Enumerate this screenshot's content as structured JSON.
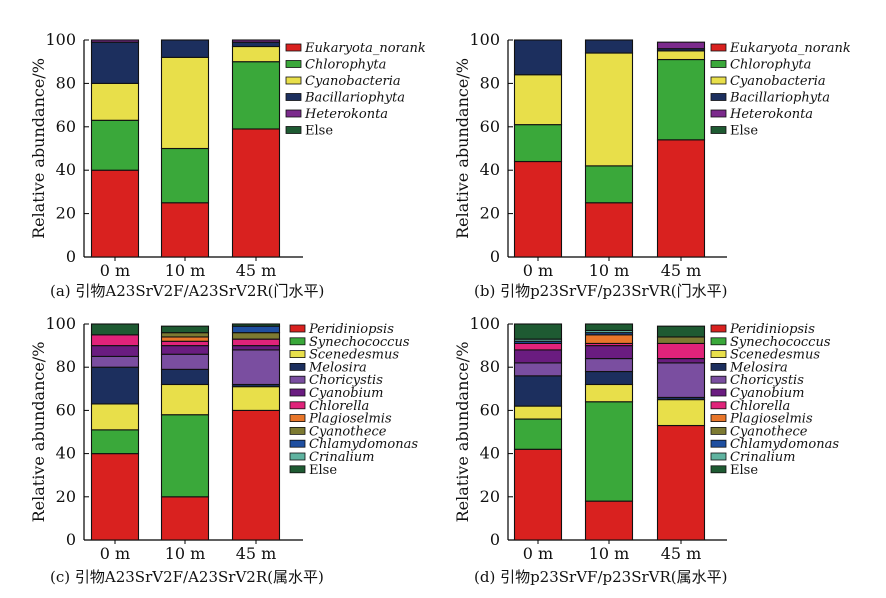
{
  "chart_data": [
    {
      "type": "bar",
      "stacked": true,
      "panel_caption": "(a) 引物A23SrV2F/A23SrV2R(门水平)",
      "ylabel": "Relative abundance/%",
      "ylim": [
        0,
        100
      ],
      "yticks": [
        "0",
        "20",
        "40",
        "60",
        "80",
        "100"
      ],
      "categories": [
        "0 m",
        "10 m",
        "45 m"
      ],
      "legend_position": "right",
      "series": [
        {
          "name": "Else",
          "italic": false,
          "color": "#1e5a32",
          "values": [
            0,
            0,
            0
          ]
        },
        {
          "name": "Heterokonta",
          "italic": true,
          "color": "#7b2a8c",
          "values": [
            1,
            0,
            1
          ]
        },
        {
          "name": "Bacillariophyta",
          "italic": true,
          "color": "#1c2f5e",
          "values": [
            19,
            8,
            2
          ]
        },
        {
          "name": "Cyanobacteria",
          "italic": true,
          "color": "#e8df4a",
          "values": [
            17,
            42,
            7
          ]
        },
        {
          "name": "Chlorophyta",
          "italic": true,
          "color": "#3aa83a",
          "values": [
            23,
            25,
            31
          ]
        },
        {
          "name": "Eukaryota_norank",
          "italic": true,
          "color": "#d9211f",
          "values": [
            40,
            25,
            59
          ]
        }
      ]
    },
    {
      "type": "bar",
      "stacked": true,
      "panel_caption": "(b) 引物p23SrVF/p23SrVR(门水平)",
      "ylabel": "Relative abundance/%",
      "ylim": [
        0,
        100
      ],
      "yticks": [
        "0",
        "20",
        "40",
        "60",
        "80",
        "100"
      ],
      "categories": [
        "0 m",
        "10 m",
        "45 m"
      ],
      "legend_position": "right",
      "series": [
        {
          "name": "Else",
          "italic": false,
          "color": "#1e5a32",
          "values": [
            0,
            0,
            0
          ]
        },
        {
          "name": "Heterokonta",
          "italic": true,
          "color": "#7b2a8c",
          "values": [
            0,
            0,
            3
          ]
        },
        {
          "name": "Bacillariophyta",
          "italic": true,
          "color": "#1c2f5e",
          "values": [
            16,
            6,
            1
          ]
        },
        {
          "name": "Cyanobacteria",
          "italic": true,
          "color": "#e8df4a",
          "values": [
            23,
            52,
            4
          ]
        },
        {
          "name": "Chlorophyta",
          "italic": true,
          "color": "#3aa83a",
          "values": [
            17,
            17,
            37
          ]
        },
        {
          "name": "Eukaryota_norank",
          "italic": true,
          "color": "#d9211f",
          "values": [
            44,
            25,
            54
          ]
        }
      ]
    },
    {
      "type": "bar",
      "stacked": true,
      "panel_caption": "(c) 引物A23SrV2F/A23SrV2R(属水平)",
      "ylabel": "Relative abundance/%",
      "ylim": [
        0,
        100
      ],
      "yticks": [
        "0",
        "20",
        "40",
        "60",
        "80",
        "100"
      ],
      "categories": [
        "0 m",
        "10 m",
        "45 m"
      ],
      "legend_position": "right",
      "series": [
        {
          "name": "Else",
          "italic": false,
          "color": "#1e5a32",
          "values": [
            5,
            3,
            1
          ]
        },
        {
          "name": "Crinalium",
          "italic": true,
          "color": "#5fb3a0",
          "values": [
            0,
            0,
            0
          ]
        },
        {
          "name": "Chlamydomonas",
          "italic": true,
          "color": "#1f4fa0",
          "values": [
            0,
            0,
            3
          ]
        },
        {
          "name": "Cyanothece",
          "italic": true,
          "color": "#7d7a32",
          "values": [
            0,
            2,
            3
          ]
        },
        {
          "name": "Plagioselmis",
          "italic": true,
          "color": "#e8762a",
          "values": [
            0,
            2,
            0
          ]
        },
        {
          "name": "Chlorella",
          "italic": true,
          "color": "#e0237a",
          "values": [
            5,
            2,
            3
          ]
        },
        {
          "name": "Cyanobium",
          "italic": true,
          "color": "#6a1c80",
          "values": [
            5,
            4,
            2
          ]
        },
        {
          "name": "Choricystis",
          "italic": true,
          "color": "#7a4ea0",
          "values": [
            5,
            7,
            16
          ]
        },
        {
          "name": "Melosira",
          "italic": true,
          "color": "#1c2f5e",
          "values": [
            17,
            7,
            1
          ]
        },
        {
          "name": "Scenedesmus",
          "italic": true,
          "color": "#e8df4a",
          "values": [
            12,
            14,
            11
          ]
        },
        {
          "name": "Synechococcus",
          "italic": true,
          "color": "#3aa83a",
          "values": [
            11,
            38,
            0
          ]
        },
        {
          "name": "Peridiniopsis",
          "italic": true,
          "color": "#d9211f",
          "values": [
            40,
            20,
            60
          ]
        }
      ]
    },
    {
      "type": "bar",
      "stacked": true,
      "panel_caption": "(d) 引物p23SrVF/p23SrVR(属水平)",
      "ylabel": "Relative abundance/%",
      "ylim": [
        0,
        100
      ],
      "yticks": [
        "0",
        "20",
        "40",
        "60",
        "80",
        "100"
      ],
      "categories": [
        "0 m",
        "10 m",
        "45 m"
      ],
      "legend_position": "right",
      "series": [
        {
          "name": "Else",
          "italic": false,
          "color": "#1e5a32",
          "values": [
            7,
            3,
            5
          ]
        },
        {
          "name": "Crinalium",
          "italic": true,
          "color": "#5fb3a0",
          "values": [
            1,
            1,
            0
          ]
        },
        {
          "name": "Chlamydomonas",
          "italic": true,
          "color": "#1f4fa0",
          "values": [
            1,
            1,
            0
          ]
        },
        {
          "name": "Cyanothece",
          "italic": true,
          "color": "#7d7a32",
          "values": [
            0,
            0,
            3
          ]
        },
        {
          "name": "Plagioselmis",
          "italic": true,
          "color": "#e8762a",
          "values": [
            0,
            4,
            0
          ]
        },
        {
          "name": "Chlorella",
          "italic": true,
          "color": "#e0237a",
          "values": [
            3,
            1,
            7
          ]
        },
        {
          "name": "Cyanobium",
          "italic": true,
          "color": "#6a1c80",
          "values": [
            6,
            6,
            2
          ]
        },
        {
          "name": "Choricystis",
          "italic": true,
          "color": "#7a4ea0",
          "values": [
            6,
            6,
            16
          ]
        },
        {
          "name": "Melosira",
          "italic": true,
          "color": "#1c2f5e",
          "values": [
            14,
            6,
            1
          ]
        },
        {
          "name": "Scenedesmus",
          "italic": true,
          "color": "#e8df4a",
          "values": [
            6,
            8,
            12
          ]
        },
        {
          "name": "Synechococcus",
          "italic": true,
          "color": "#3aa83a",
          "values": [
            14,
            46,
            0
          ]
        },
        {
          "name": "Peridiniopsis",
          "italic": true,
          "color": "#d9211f",
          "values": [
            42,
            18,
            53
          ]
        }
      ]
    }
  ]
}
